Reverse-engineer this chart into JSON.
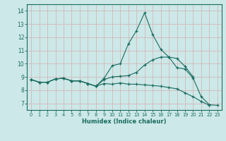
{
  "xlabel": "Humidex (Indice chaleur)",
  "background_color": "#cce8e8",
  "grid_color": "#d4b8b8",
  "line_color": "#1a6b5e",
  "ylim": [
    6.5,
    14.5
  ],
  "yticks": [
    7,
    8,
    9,
    10,
    11,
    12,
    13,
    14
  ],
  "xticks": [
    0,
    1,
    2,
    3,
    4,
    5,
    6,
    7,
    8,
    9,
    10,
    11,
    12,
    13,
    14,
    15,
    16,
    17,
    18,
    19,
    20,
    21,
    22,
    23
  ],
  "line1": [
    8.8,
    8.6,
    8.6,
    8.85,
    8.9,
    8.7,
    8.7,
    8.5,
    8.3,
    8.9,
    9.85,
    10.0,
    11.5,
    12.5,
    13.85,
    12.2,
    11.1,
    10.5,
    9.7,
    9.6,
    8.9,
    7.5,
    6.9,
    6.85
  ],
  "line2": [
    8.8,
    8.6,
    8.6,
    8.85,
    8.9,
    8.7,
    8.7,
    8.5,
    8.3,
    8.8,
    9.0,
    9.05,
    9.1,
    9.35,
    9.9,
    10.3,
    10.5,
    10.5,
    10.4,
    9.8,
    9.0,
    null,
    null,
    null
  ],
  "line3": [
    8.8,
    8.6,
    8.6,
    8.85,
    8.9,
    8.7,
    8.7,
    8.5,
    8.3,
    8.5,
    8.45,
    8.55,
    8.45,
    8.45,
    8.4,
    8.35,
    8.3,
    8.2,
    8.1,
    7.8,
    7.5,
    7.15,
    6.85,
    null
  ]
}
